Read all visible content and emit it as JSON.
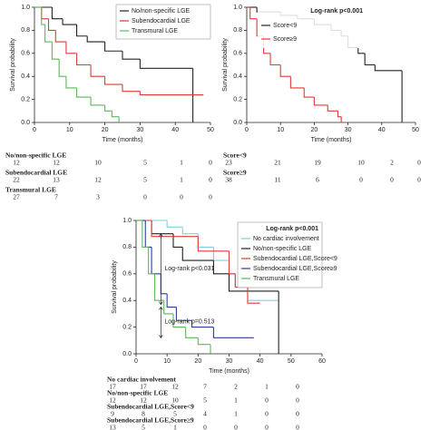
{
  "chart_data": [
    {
      "type": "step",
      "x_label": "Time (months)",
      "y_label": "Survival probability",
      "xlim": [
        0,
        50
      ],
      "xticks": [
        0,
        10,
        20,
        30,
        40,
        50
      ],
      "ylim": [
        0,
        1
      ],
      "yticks": [
        {
          "value": 0,
          "label": "0.0"
        },
        0.2,
        0.4,
        0.6,
        0.8,
        {
          "value": 1,
          "label": "1.0"
        }
      ],
      "legend": "upper right",
      "series": [
        {
          "name": "No/non-specific LGE",
          "color": "#222222",
          "x": [
            0,
            5,
            8,
            12,
            15,
            20,
            25,
            30,
            45
          ],
          "values": [
            1,
            0.9,
            0.85,
            0.75,
            0.7,
            0.62,
            0.55,
            0.47,
            0
          ]
        },
        {
          "name": "Subendocardial LGE",
          "color": "#e03a3a",
          "x": [
            0,
            2,
            4,
            6,
            9,
            12,
            16,
            20,
            25,
            30,
            48
          ],
          "values": [
            1,
            0.9,
            0.8,
            0.7,
            0.6,
            0.5,
            0.4,
            0.33,
            0.27,
            0.24,
            0.24
          ]
        },
        {
          "name": "Transmural LGE",
          "color": "#5cb85c",
          "x": [
            0,
            2,
            3,
            5,
            7,
            9,
            12,
            16,
            20,
            22,
            24
          ],
          "values": [
            1,
            0.85,
            0.7,
            0.55,
            0.4,
            0.3,
            0.22,
            0.15,
            0.1,
            0.05,
            0
          ]
        }
      ],
      "risk_table": [
        {
          "name": "No/non-specific LGE",
          "counts": [
            12,
            12,
            10,
            5,
            1,
            0
          ]
        },
        {
          "name": "Subendocardial LGE",
          "counts": [
            22,
            13,
            12,
            5,
            1,
            0
          ]
        },
        {
          "name": "Transmural LGE",
          "counts": [
            27,
            7,
            3,
            0,
            0,
            0
          ]
        }
      ]
    },
    {
      "type": "step",
      "x_label": "Time (months)",
      "y_label": "Survival probability",
      "legend_title": "Log-rank p<0.001",
      "xlim": [
        0,
        50
      ],
      "xticks": [
        0,
        10,
        20,
        30,
        40,
        50
      ],
      "ylim": [
        0,
        1
      ],
      "yticks": [
        {
          "value": 0,
          "label": "0.0"
        },
        0.2,
        0.4,
        0.6,
        0.8,
        {
          "value": 1,
          "label": "1.0"
        }
      ],
      "legend": "upper right",
      "series": [
        {
          "name": "Score<9",
          "color": "#222222",
          "x": [
            0,
            3,
            10,
            15,
            20,
            25,
            28,
            30,
            33,
            35,
            38,
            46
          ],
          "values": [
            1,
            0.96,
            0.93,
            0.9,
            0.85,
            0.8,
            0.75,
            0.65,
            0.6,
            0.5,
            0.45,
            0
          ]
        },
        {
          "name": "Score≥9",
          "color": "#e03a3a",
          "x": [
            0,
            1,
            3,
            5,
            7,
            10,
            13,
            17,
            20,
            24,
            27,
            28
          ],
          "values": [
            1,
            0.9,
            0.75,
            0.6,
            0.5,
            0.4,
            0.3,
            0.22,
            0.15,
            0.1,
            0.05,
            0
          ]
        }
      ],
      "risk_table": [
        {
          "name": "Score<9",
          "counts": [
            23,
            21,
            19,
            10,
            2,
            0
          ]
        },
        {
          "name": "Score≥9",
          "counts": [
            38,
            11,
            6,
            0,
            0,
            0
          ]
        }
      ]
    },
    {
      "type": "step",
      "x_label": "Time (months)",
      "y_label": "Survival probability",
      "legend_title": "Log-rank p<0.001",
      "annotations": [
        "Log-rank p<0.031",
        "Log-rank p=0.513"
      ],
      "xlim": [
        0,
        60
      ],
      "xticks": [
        0,
        10,
        20,
        30,
        40,
        50,
        60
      ],
      "ylim": [
        0,
        1
      ],
      "yticks": [
        {
          "value": 0,
          "label": "0.0"
        },
        0.2,
        0.4,
        0.6,
        0.8,
        {
          "value": 1,
          "label": "1.0"
        }
      ],
      "legend": "upper right",
      "series": [
        {
          "name": "No cardiac involvement",
          "color": "#7fd0de",
          "x": [
            0,
            10,
            15,
            20,
            25,
            30,
            32,
            36,
            46
          ],
          "values": [
            1,
            0.95,
            0.9,
            0.8,
            0.7,
            0.6,
            0.5,
            0.4,
            0.4
          ]
        },
        {
          "name": "No/non-specific LGE",
          "color": "#222222",
          "x": [
            0,
            5,
            12,
            15,
            25,
            30,
            46
          ],
          "values": [
            1,
            0.9,
            0.8,
            0.7,
            0.6,
            0.47,
            0
          ]
        },
        {
          "name": "Subendocardial LGE,Score<9",
          "color": "#e03a3a",
          "x": [
            0,
            5,
            20,
            30,
            32,
            36,
            40
          ],
          "values": [
            1,
            0.88,
            0.77,
            0.6,
            0.5,
            0.38,
            0.38
          ]
        },
        {
          "name": "Subendocardial LGE,Score≥9",
          "color": "#2a3ea0",
          "x": [
            0,
            3,
            5,
            8,
            10,
            13,
            18,
            25,
            38
          ],
          "values": [
            1,
            0.8,
            0.6,
            0.45,
            0.35,
            0.25,
            0.2,
            0.12,
            0.12
          ]
        },
        {
          "name": "Transmural LGE",
          "color": "#5cb85c",
          "x": [
            0,
            2,
            4,
            6,
            9,
            12,
            16,
            20,
            24
          ],
          "values": [
            1,
            0.8,
            0.6,
            0.4,
            0.3,
            0.2,
            0.12,
            0.07,
            0
          ]
        }
      ],
      "risk_table": [
        {
          "name": "No cardiac involvement",
          "counts": [
            17,
            17,
            12,
            7,
            2,
            1,
            0
          ]
        },
        {
          "name": "No/non-specific LGE",
          "counts": [
            12,
            12,
            10,
            5,
            1,
            0,
            0
          ]
        },
        {
          "name": "Subendocardial LGE,Score<9",
          "counts": [
            9,
            8,
            5,
            4,
            1,
            0,
            0
          ]
        },
        {
          "name": "Subendocardial LGE,Score≥9",
          "counts": [
            13,
            5,
            1,
            0,
            0,
            0,
            0
          ]
        }
      ]
    }
  ]
}
